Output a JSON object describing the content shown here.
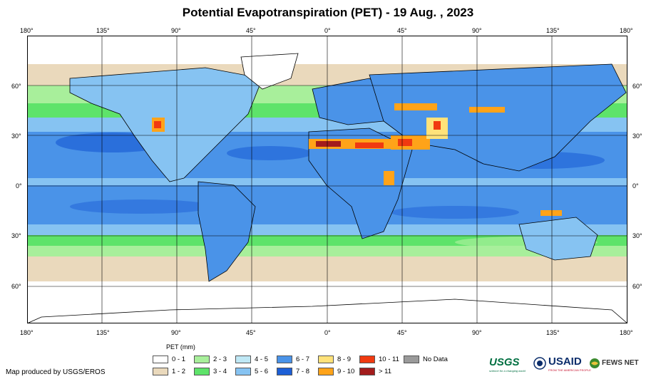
{
  "title": "Potential Evapotranspiration (PET) - 19 Aug. , 2023",
  "lon_ticks": [
    "180°",
    "135°",
    "90°",
    "45°",
    "0°",
    "45°",
    "90°",
    "135°",
    "180°"
  ],
  "lat_ticks": [
    "60°",
    "30°",
    "0°",
    "30°",
    "60°"
  ],
  "legend": {
    "title": "PET (mm)",
    "items": [
      {
        "label": "0 - 1",
        "color": "#ffffff"
      },
      {
        "label": "1 - 2",
        "color": "#ead9bc"
      },
      {
        "label": "2 - 3",
        "color": "#a8ef9b"
      },
      {
        "label": "3 - 4",
        "color": "#5ee36a"
      },
      {
        "label": "4 - 5",
        "color": "#bfe8f5"
      },
      {
        "label": "5 - 6",
        "color": "#86c3f2"
      },
      {
        "label": "6 - 7",
        "color": "#4a93e8"
      },
      {
        "label": "7 - 8",
        "color": "#1d5fd6"
      },
      {
        "label": "8 - 9",
        "color": "#ffe27a"
      },
      {
        "label": "9 - 10",
        "color": "#ffa319"
      },
      {
        "label": "10 - 11",
        "color": "#f03a10"
      },
      {
        "label": "> 11",
        "color": "#a31c1c"
      },
      {
        "label": "No Data",
        "color": "#9a9a9a"
      }
    ]
  },
  "credit": "Map produced by USGS/EROS",
  "logos": {
    "usgs": "USGS",
    "usgs_tagline": "science for a changing world",
    "usaid": "USAID",
    "usaid_tagline": "FROM THE AMERICAN PEOPLE",
    "fews": "FEWS NET"
  }
}
